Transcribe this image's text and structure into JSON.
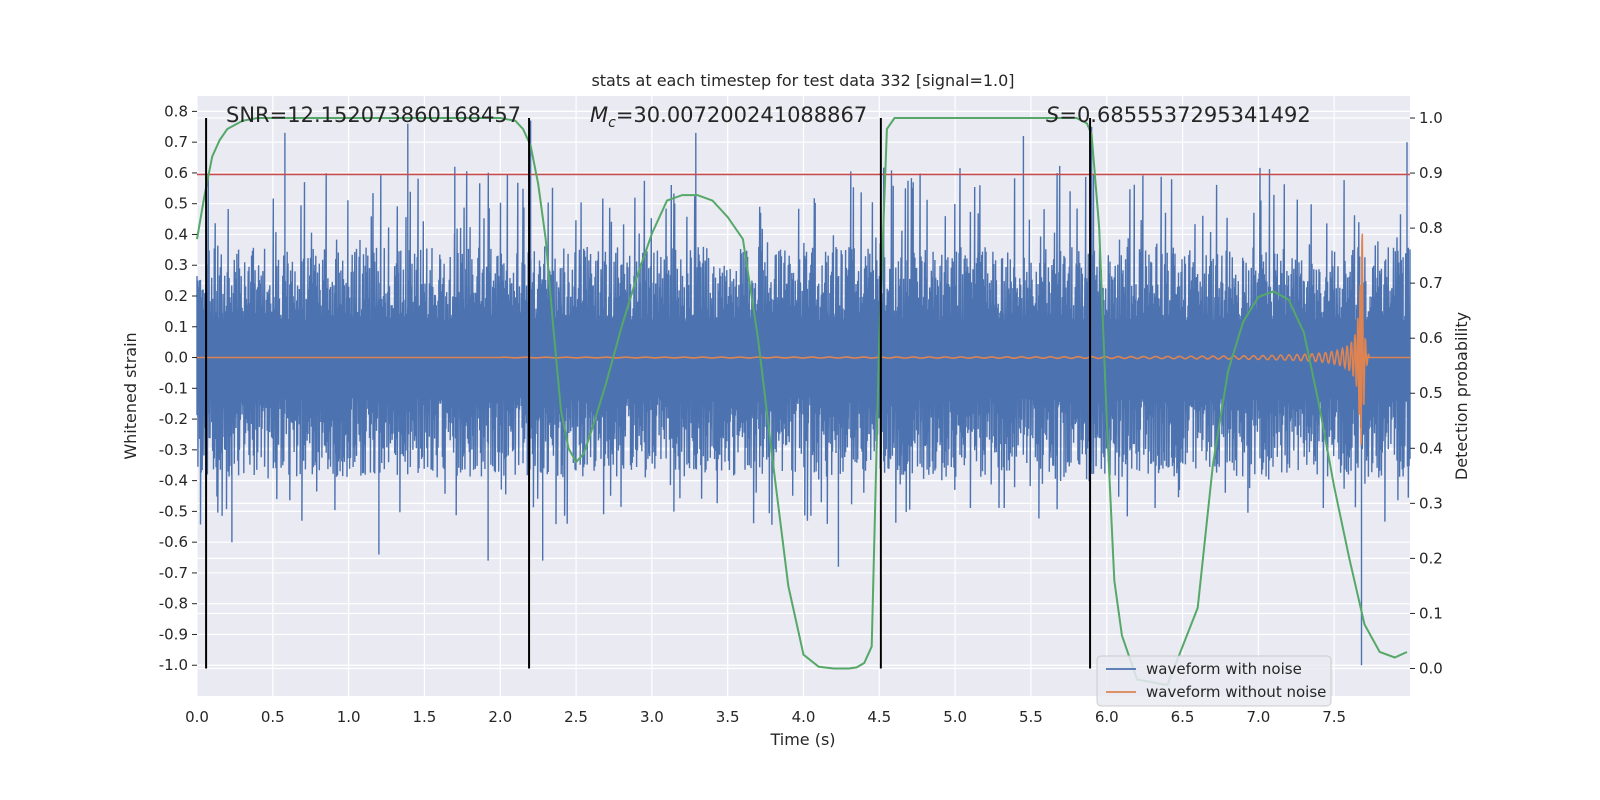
{
  "chart_data": {
    "type": "line",
    "title": "stats at each timestep for test data 332 [signal=1.0]",
    "xlabel": "Time (s)",
    "ylabel": "Whitened strain",
    "y2label": "Detection probability",
    "xlim": [
      0.0,
      8.0
    ],
    "ylim": [
      -1.1,
      0.85
    ],
    "y2lim": [
      -0.05,
      1.04
    ],
    "x_ticks": [
      "0.0",
      "0.5",
      "1.0",
      "1.5",
      "2.0",
      "2.5",
      "3.0",
      "3.5",
      "4.0",
      "4.5",
      "5.0",
      "5.5",
      "6.0",
      "6.5",
      "7.0",
      "7.5"
    ],
    "y_ticks": [
      "0.8",
      "0.7",
      "0.6",
      "0.5",
      "0.4",
      "0.3",
      "0.2",
      "0.1",
      "0.0",
      "-0.1",
      "-0.2",
      "-0.3",
      "-0.4",
      "-0.5",
      "-0.6",
      "-0.7",
      "-0.8",
      "-0.9",
      "-1.0"
    ],
    "y2_ticks": [
      "1.0",
      "0.9",
      "0.8",
      "0.7",
      "0.6",
      "0.5",
      "0.4",
      "0.3",
      "0.2",
      "0.1",
      "0.0"
    ],
    "grid": true,
    "legend": "bottom-right",
    "threshold_y": 0.595,
    "annotations": {
      "snr": "SNR=12.152073860168457",
      "mc_symbol": "M",
      "mc_sub": "c",
      "mc_value": "=30.007200241088867",
      "s_symbol": "S",
      "s_value": "=0.6855537295341492"
    },
    "segment_markers_x": [
      0.06,
      2.19,
      4.51,
      5.89
    ],
    "series": [
      {
        "name": "waveform with noise",
        "color": "#4c72b0",
        "envelope": [
          0.24,
          -0.26
        ],
        "spike_max": 0.78,
        "spike_min": -0.68,
        "notable_spikes": [
          {
            "x": 0.58,
            "y": 0.73
          },
          {
            "x": 1.39,
            "y": 0.76
          },
          {
            "x": 1.7,
            "y": 0.62
          },
          {
            "x": 2.2,
            "y": 0.77
          },
          {
            "x": 3.29,
            "y": 0.73
          },
          {
            "x": 4.23,
            "y": -0.68
          },
          {
            "x": 5.45,
            "y": 0.72
          },
          {
            "x": 5.9,
            "y": 0.75
          },
          {
            "x": 1.2,
            "y": -0.64
          },
          {
            "x": 1.92,
            "y": -0.66
          },
          {
            "x": 2.28,
            "y": -0.66
          },
          {
            "x": 7.68,
            "y": -1.0
          },
          {
            "x": 7.98,
            "y": 0.7
          },
          {
            "x": 0.23,
            "y": -0.6
          }
        ]
      },
      {
        "name": "waveform without noise",
        "color": "#dd8452",
        "chirp_start_x": 2.0,
        "merger_x": 7.68,
        "peak_y": 0.65,
        "trough_y": -0.62
      },
      {
        "name": "detection probability",
        "color": "#55a868",
        "x": [
          0.0,
          0.05,
          0.1,
          0.15,
          0.2,
          0.3,
          0.4,
          0.6,
          1.0,
          1.5,
          2.0,
          2.1,
          2.15,
          2.2,
          2.25,
          2.3,
          2.35,
          2.4,
          2.45,
          2.5,
          2.55,
          2.6,
          2.7,
          2.8,
          2.9,
          3.0,
          3.1,
          3.2,
          3.3,
          3.4,
          3.5,
          3.6,
          3.7,
          3.8,
          3.9,
          4.0,
          4.1,
          4.2,
          4.3,
          4.35,
          4.4,
          4.45,
          4.5,
          4.55,
          4.6,
          4.7,
          5.0,
          5.5,
          5.8,
          5.87,
          5.9,
          5.95,
          6.0,
          6.05,
          6.1,
          6.2,
          6.4,
          6.6,
          6.7,
          6.8,
          6.9,
          7.0,
          7.1,
          7.2,
          7.3,
          7.4,
          7.5,
          7.6,
          7.7,
          7.8,
          7.9,
          7.98
        ],
        "y": [
          0.78,
          0.86,
          0.93,
          0.96,
          0.98,
          0.995,
          1.0,
          1.0,
          1.0,
          1.0,
          1.0,
          0.995,
          0.98,
          0.95,
          0.88,
          0.78,
          0.62,
          0.47,
          0.4,
          0.375,
          0.39,
          0.43,
          0.52,
          0.62,
          0.71,
          0.79,
          0.85,
          0.86,
          0.86,
          0.85,
          0.82,
          0.78,
          0.6,
          0.37,
          0.15,
          0.025,
          0.003,
          0.0,
          0.0,
          0.002,
          0.01,
          0.04,
          0.6,
          0.98,
          1.0,
          1.0,
          1.0,
          1.0,
          1.0,
          0.99,
          0.97,
          0.8,
          0.45,
          0.16,
          0.06,
          -0.02,
          -0.03,
          0.11,
          0.37,
          0.54,
          0.63,
          0.675,
          0.685,
          0.67,
          0.61,
          0.48,
          0.33,
          0.2,
          0.08,
          0.03,
          0.02,
          0.03
        ]
      }
    ]
  }
}
